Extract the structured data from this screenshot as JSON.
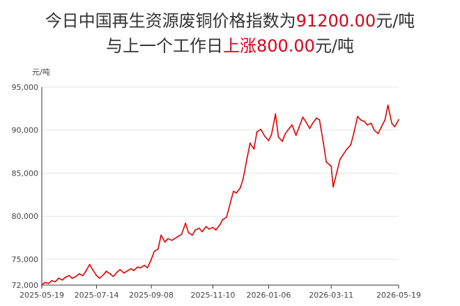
{
  "header": {
    "line1_prefix": "今日中国再生资源废铜价格指数为",
    "line1_value": "91200.00",
    "line1_suffix": "元/吨",
    "line2_prefix": "与上一个工作日",
    "line2_change": "上涨800.00",
    "line2_suffix": "元/吨"
  },
  "colors": {
    "series": "#e00000",
    "highlight": "#d9001b",
    "grid": "#e6e6e6",
    "axis": "#333333"
  },
  "chart_data": {
    "type": "line",
    "title": "",
    "xlabel": "",
    "ylabel": "元/吨",
    "ylim": [
      72000,
      95000
    ],
    "xlim": [
      "2025-05-19",
      "2026-05-19"
    ],
    "grid": "horizontal",
    "y_ticks": [
      72000,
      75000,
      80000,
      85000,
      90000,
      95000
    ],
    "y_tick_labels": [
      "72,000",
      "75,000",
      "80,000",
      "85,000",
      "90,000",
      "95,000"
    ],
    "x_ticks": [
      "2025-05-19",
      "2025-07-14",
      "2025-09-08",
      "2025-11-10",
      "2026-01-06",
      "2026-03-11",
      "2026-05-19"
    ],
    "series": [
      {
        "x": [
          "2025-05-19",
          "2025-05-22",
          "2025-05-26",
          "2025-05-29",
          "2025-06-02",
          "2025-06-05",
          "2025-06-09",
          "2025-06-12",
          "2025-06-16",
          "2025-06-19",
          "2025-06-23",
          "2025-06-26",
          "2025-06-30",
          "2025-07-03",
          "2025-07-07",
          "2025-07-10",
          "2025-07-14",
          "2025-07-17",
          "2025-07-21",
          "2025-07-24",
          "2025-07-28",
          "2025-07-31",
          "2025-08-04",
          "2025-08-07",
          "2025-08-11",
          "2025-08-14",
          "2025-08-18",
          "2025-08-21",
          "2025-08-25",
          "2025-08-28",
          "2025-09-01",
          "2025-09-04",
          "2025-09-08",
          "2025-09-11",
          "2025-09-15",
          "2025-09-18",
          "2025-09-22",
          "2025-09-25",
          "2025-09-29",
          "2025-10-09",
          "2025-10-13",
          "2025-10-16",
          "2025-10-20",
          "2025-10-23",
          "2025-10-27",
          "2025-10-30",
          "2025-11-03",
          "2025-11-06",
          "2025-11-10",
          "2025-11-13",
          "2025-11-17",
          "2025-11-20",
          "2025-11-24",
          "2025-11-27",
          "2025-12-01",
          "2025-12-04",
          "2025-12-08",
          "2025-12-11",
          "2025-12-15",
          "2025-12-18",
          "2025-12-22",
          "2025-12-25",
          "2025-12-29",
          "2026-01-02",
          "2026-01-06",
          "2026-01-09",
          "2026-01-13",
          "2026-01-16",
          "2026-01-20",
          "2026-01-23",
          "2026-01-27",
          "2026-01-30",
          "2026-02-03",
          "2026-02-06",
          "2026-02-10",
          "2026-02-13",
          "2026-02-17",
          "2026-02-20",
          "2026-02-24",
          "2026-02-27",
          "2026-03-03",
          "2026-03-06",
          "2026-03-11",
          "2026-03-13",
          "2026-03-17",
          "2026-03-20",
          "2026-03-24",
          "2026-03-27",
          "2026-03-31",
          "2026-04-03",
          "2026-04-07",
          "2026-04-10",
          "2026-04-14",
          "2026-04-17",
          "2026-04-21",
          "2026-04-24",
          "2026-04-28",
          "2026-05-01",
          "2026-05-05",
          "2026-05-08",
          "2026-05-12",
          "2026-05-15",
          "2026-05-19"
        ],
        "y": [
          72000,
          72300,
          72200,
          72500,
          72400,
          72800,
          72600,
          72900,
          73100,
          72800,
          73000,
          73300,
          73100,
          73600,
          74400,
          73800,
          73100,
          72800,
          73200,
          73600,
          73300,
          73000,
          73500,
          73800,
          73400,
          73600,
          73900,
          73700,
          74100,
          74000,
          74300,
          74000,
          75000,
          75900,
          76200,
          77800,
          77000,
          77400,
          77200,
          77900,
          79200,
          78100,
          77800,
          78400,
          78600,
          78200,
          78800,
          78500,
          78700,
          78400,
          79000,
          79600,
          79900,
          81200,
          82900,
          82700,
          83300,
          84400,
          86800,
          88500,
          87800,
          89800,
          90100,
          89300,
          88800,
          89500,
          91900,
          89200,
          88700,
          89600,
          90200,
          90600,
          89400,
          90300,
          91500,
          91000,
          90200,
          90800,
          91400,
          91200,
          88500,
          86300,
          85800,
          83400,
          85200,
          86600,
          87300,
          87800,
          88300,
          89600,
          91600,
          91200,
          91000,
          90600,
          90800,
          90000,
          89600,
          90300,
          91200,
          92900,
          90800,
          90400,
          91200
        ]
      }
    ]
  }
}
